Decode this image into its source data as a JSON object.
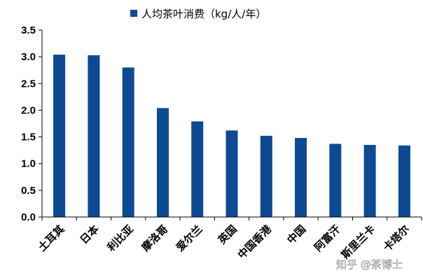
{
  "chart_data": {
    "type": "bar",
    "categories": [
      "土耳其",
      "日本",
      "利比亚",
      "摩洛哥",
      "爱尔兰",
      "英国",
      "中国香港",
      "中国",
      "阿富汗",
      "斯里兰卡",
      "卡塔尔"
    ],
    "series": [
      {
        "name": "人均茶叶消费（kg/人/年）",
        "values": [
          3.04,
          3.03,
          2.8,
          2.04,
          1.79,
          1.62,
          1.52,
          1.48,
          1.37,
          1.35,
          1.34
        ],
        "color": "#0e4a92"
      }
    ],
    "yticks": [
      "0.0",
      "0.5",
      "1.0",
      "1.5",
      "2.0",
      "2.5",
      "3.0",
      "3.5"
    ],
    "ylim": [
      0,
      3.5
    ],
    "grid": false,
    "legend_position": "top-center"
  },
  "watermark": "知乎 @茶博士",
  "colors": {
    "bar": "#0e4a92",
    "axis": "#000000"
  }
}
